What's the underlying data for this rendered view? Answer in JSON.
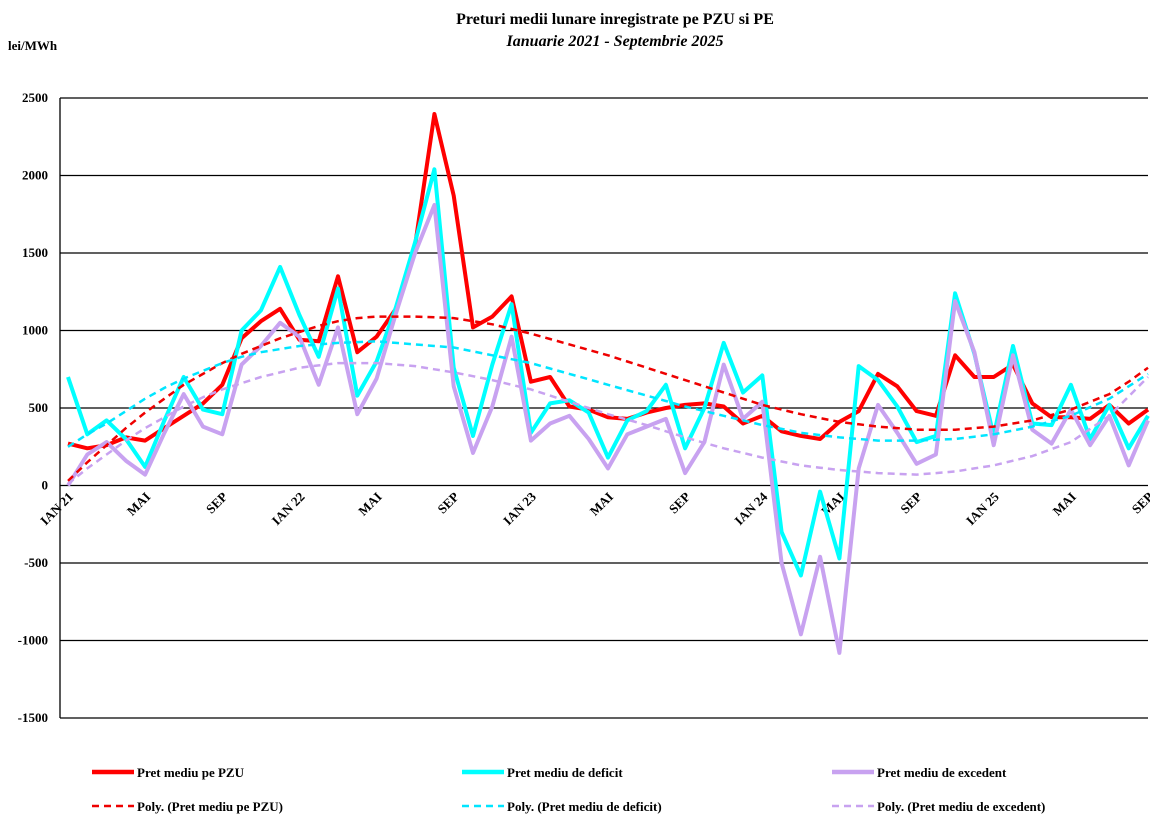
{
  "chart_data": {
    "type": "line",
    "title": "Preturi medii lunare inregistrate pe PZU si PE",
    "subtitle": "Ianuarie 2021 - Septembrie 2025",
    "y_label": "lei/MWh",
    "categories": [
      "IAN 21",
      null,
      null,
      null,
      "MAI",
      null,
      null,
      null,
      "SEP",
      null,
      null,
      null,
      "IAN 22",
      null,
      null,
      null,
      "MAI",
      null,
      null,
      null,
      "SEP",
      null,
      null,
      null,
      "IAN 23",
      null,
      null,
      null,
      "MAI",
      null,
      null,
      null,
      "SEP",
      null,
      null,
      null,
      "IAN 24",
      null,
      null,
      null,
      "MAI",
      null,
      null,
      null,
      "SEP",
      null,
      null,
      null,
      "IAN 25",
      null,
      null,
      null,
      "MAI",
      null,
      null,
      null,
      "SEP"
    ],
    "ylim": [
      -1500,
      2500
    ],
    "yticks": [
      -1500,
      -1000,
      -500,
      0,
      500,
      1000,
      1500,
      2000,
      2500
    ],
    "grid": true,
    "legend": "bottom",
    "series": [
      {
        "name": "Pret mediu pe PZU",
        "color": "#ff0000",
        "dashed": false,
        "values": [
          270,
          240,
          260,
          310,
          290,
          370,
          450,
          530,
          650,
          950,
          1060,
          1140,
          940,
          930,
          1350,
          860,
          960,
          1140,
          1550,
          2397,
          1870,
          1020,
          1090,
          1220,
          670,
          700,
          510,
          490,
          440,
          430,
          470,
          500,
          520,
          530,
          510,
          400,
          450,
          350,
          320,
          300,
          410,
          480,
          720,
          640,
          480,
          450,
          840,
          700,
          700,
          780,
          530,
          440,
          440,
          430,
          520,
          400,
          490
        ]
      },
      {
        "name": "Pret mediu de deficit",
        "color": "#00ffff",
        "dashed": false,
        "values": [
          700,
          330,
          420,
          300,
          120,
          420,
          700,
          490,
          460,
          1000,
          1130,
          1410,
          1100,
          830,
          1270,
          580,
          800,
          1150,
          1570,
          2040,
          760,
          320,
          780,
          1170,
          340,
          530,
          550,
          470,
          180,
          420,
          480,
          650,
          240,
          500,
          920,
          600,
          710,
          -300,
          -580,
          -40,
          -470,
          770,
          680,
          510,
          280,
          320,
          1240,
          850,
          320,
          900,
          400,
          390,
          650,
          300,
          520,
          240,
          450
        ]
      },
      {
        "name": "Pret mediu de excedent",
        "color": "#c8a2f0",
        "dashed": false,
        "values": [
          0,
          200,
          280,
          160,
          70,
          340,
          590,
          380,
          330,
          780,
          900,
          1050,
          960,
          650,
          1020,
          460,
          690,
          1110,
          1500,
          1810,
          640,
          210,
          510,
          960,
          290,
          400,
          450,
          300,
          110,
          330,
          380,
          430,
          80,
          280,
          780,
          430,
          540,
          -500,
          -960,
          -460,
          -1080,
          110,
          520,
          340,
          140,
          200,
          1190,
          860,
          260,
          840,
          360,
          270,
          490,
          260,
          450,
          130,
          420
        ]
      },
      {
        "name": "Poly. (Pret mediu pe PZU)",
        "color": "#ee0000",
        "dashed": true,
        "values": [
          30,
          150,
          260,
          370,
          470,
          560,
          650,
          720,
          790,
          850,
          900,
          950,
          990,
          1030,
          1060,
          1080,
          1090,
          1090,
          1090,
          1085,
          1080,
          1060,
          1040,
          1010,
          980,
          945,
          910,
          875,
          840,
          800,
          760,
          720,
          680,
          640,
          600,
          560,
          520,
          490,
          460,
          435,
          410,
          395,
          380,
          370,
          360,
          360,
          360,
          370,
          380,
          400,
          420,
          455,
          490,
          540,
          590,
          670,
          760
        ]
      },
      {
        "name": "Poly. (Pret mediu de deficit)",
        "color": "#00e5ff",
        "dashed": true,
        "values": [
          250,
          330,
          400,
          480,
          560,
          630,
          690,
          740,
          790,
          830,
          860,
          880,
          900,
          910,
          920,
          925,
          930,
          920,
          910,
          900,
          890,
          865,
          840,
          815,
          790,
          755,
          720,
          685,
          650,
          615,
          580,
          545,
          510,
          480,
          450,
          420,
          390,
          365,
          340,
          325,
          310,
          300,
          290,
          290,
          290,
          295,
          300,
          315,
          330,
          355,
          380,
          415,
          450,
          505,
          560,
          640,
          720
        ]
      },
      {
        "name": "Poly. (Pret mediu de excedent)",
        "color": "#c8a2f0",
        "dashed": true,
        "values": [
          10,
          110,
          200,
          290,
          370,
          440,
          510,
          570,
          620,
          660,
          700,
          730,
          760,
          775,
          790,
          790,
          790,
          780,
          770,
          750,
          730,
          705,
          680,
          650,
          620,
          580,
          540,
          500,
          460,
          425,
          390,
          350,
          310,
          275,
          240,
          210,
          180,
          155,
          130,
          115,
          100,
          90,
          80,
          75,
          70,
          80,
          90,
          110,
          130,
          160,
          190,
          235,
          280,
          365,
          450,
          575,
          700
        ]
      }
    ]
  }
}
